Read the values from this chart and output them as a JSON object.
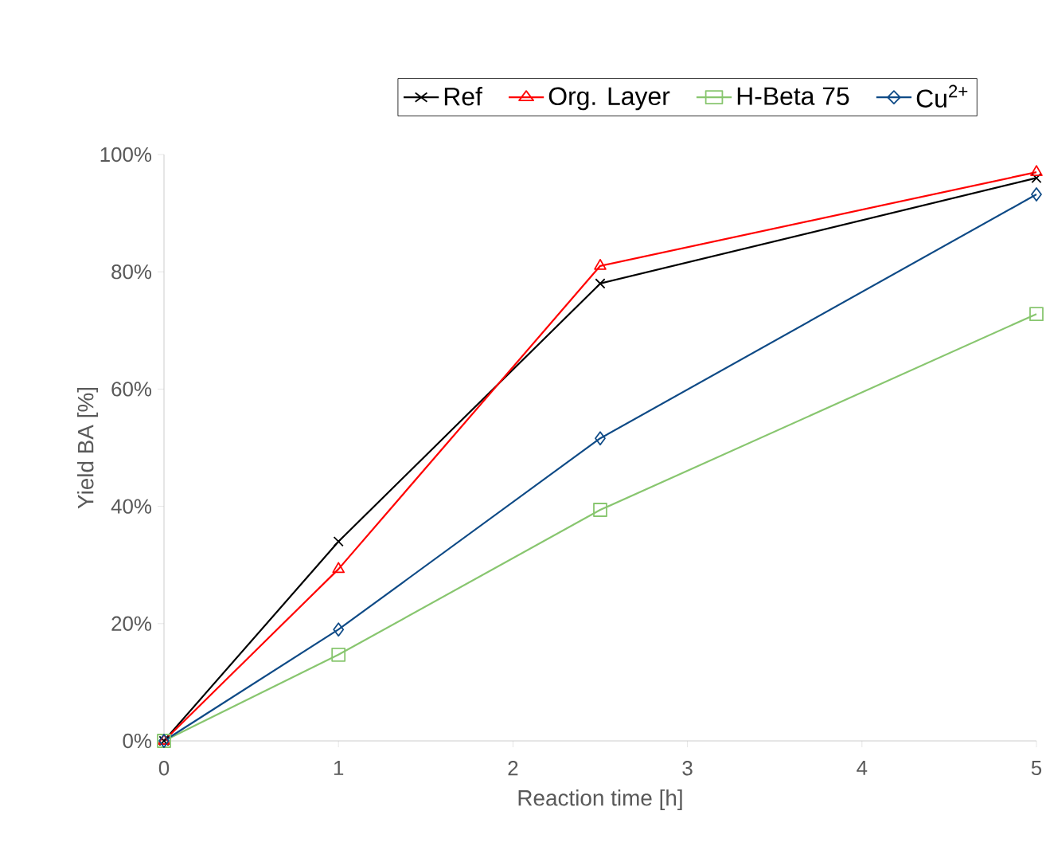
{
  "chart_data": {
    "type": "line",
    "xlabel": "Reaction time [h]",
    "ylabel": "Yield BA [%]",
    "x": [
      0,
      1,
      2.5,
      5
    ],
    "series": [
      {
        "name": "Ref",
        "color": "#000000",
        "marker": "cross",
        "values": [
          0,
          34,
          78,
          96
        ]
      },
      {
        "name": "Org. Layer",
        "color": "#ff0000",
        "marker": "triangle",
        "values": [
          0,
          29.3,
          81,
          97
        ]
      },
      {
        "name": "H-Beta 75",
        "color": "#88c66f",
        "marker": "square",
        "values": [
          0,
          14.7,
          39.4,
          72.8
        ]
      },
      {
        "name": "Cu$^{2+}$",
        "color": "#0e4a86",
        "marker": "diamond",
        "values": [
          0,
          19,
          51.6,
          93.2
        ]
      }
    ],
    "xlim": [
      0,
      5
    ],
    "xticks": [
      0,
      1,
      2,
      3,
      4,
      5
    ],
    "ylim": [
      0,
      100
    ],
    "yticks": [
      {
        "value": 0,
        "label": "0%"
      },
      {
        "value": 20,
        "label": "20%"
      },
      {
        "value": 40,
        "label": "40%"
      },
      {
        "value": 60,
        "label": "60%"
      },
      {
        "value": 80,
        "label": "80%"
      },
      {
        "value": 100,
        "label": "100%"
      }
    ],
    "legend": "top",
    "grid": false,
    "line_style": "solid"
  }
}
